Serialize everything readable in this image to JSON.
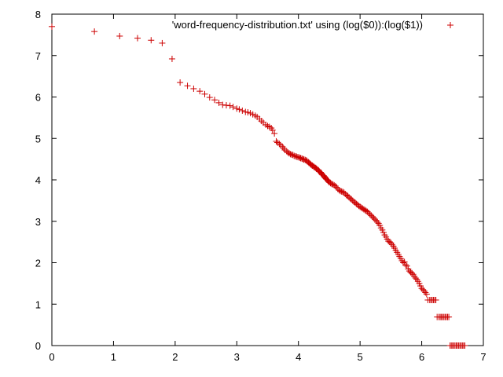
{
  "chart_data": {
    "type": "scatter",
    "title": "",
    "xlabel": "",
    "ylabel": "",
    "xlim": [
      0,
      7
    ],
    "ylim": [
      0,
      8
    ],
    "x_ticks": [
      "0",
      "1",
      "2",
      "3",
      "4",
      "5",
      "6",
      "7"
    ],
    "y_ticks": [
      "0",
      "1",
      "2",
      "3",
      "4",
      "5",
      "6",
      "7",
      "8"
    ],
    "grid": false,
    "legend_position": "top-right",
    "series": [
      {
        "name": "'word-frequency-distribution.txt' using (log($0)):(log($1))",
        "color": "#cc0000",
        "marker": "plus",
        "points": [
          [
            0.0,
            7.7
          ],
          [
            0.69,
            7.58
          ],
          [
            1.1,
            7.47
          ],
          [
            1.39,
            7.42
          ],
          [
            1.61,
            7.37
          ],
          [
            1.79,
            7.3
          ],
          [
            1.95,
            6.92
          ],
          [
            2.08,
            6.35
          ],
          [
            2.2,
            6.27
          ],
          [
            2.3,
            6.2
          ],
          [
            2.4,
            6.14
          ],
          [
            2.48,
            6.07
          ],
          [
            2.56,
            5.99
          ],
          [
            2.64,
            5.93
          ],
          [
            2.71,
            5.86
          ],
          [
            2.77,
            5.81
          ],
          [
            2.83,
            5.8
          ],
          [
            2.89,
            5.79
          ],
          [
            2.94,
            5.76
          ],
          [
            3.0,
            5.72
          ],
          [
            3.04,
            5.7
          ],
          [
            3.09,
            5.67
          ],
          [
            3.14,
            5.64
          ],
          [
            3.18,
            5.63
          ],
          [
            3.22,
            5.61
          ],
          [
            3.26,
            5.58
          ],
          [
            3.3,
            5.55
          ],
          [
            3.33,
            5.52
          ],
          [
            3.37,
            5.47
          ],
          [
            3.4,
            5.42
          ],
          [
            3.43,
            5.38
          ],
          [
            3.47,
            5.33
          ],
          [
            3.5,
            5.3
          ],
          [
            3.53,
            5.28
          ],
          [
            3.56,
            5.25
          ],
          [
            3.58,
            5.2
          ],
          [
            3.61,
            5.12
          ],
          [
            3.64,
            4.93
          ],
          [
            3.66,
            4.9
          ],
          [
            3.69,
            4.87
          ],
          [
            3.71,
            4.84
          ],
          [
            3.74,
            4.8
          ],
          [
            3.76,
            4.76
          ],
          [
            3.78,
            4.72
          ],
          [
            3.81,
            4.69
          ],
          [
            3.83,
            4.66
          ],
          [
            3.85,
            4.64
          ],
          [
            3.87,
            4.62
          ],
          [
            3.89,
            4.61
          ],
          [
            3.91,
            4.6
          ],
          [
            3.93,
            4.58
          ],
          [
            3.95,
            4.57
          ],
          [
            3.97,
            4.56
          ],
          [
            3.99,
            4.55
          ],
          [
            4.01,
            4.54
          ],
          [
            4.03,
            4.53
          ],
          [
            4.04,
            4.52
          ],
          [
            4.06,
            4.51
          ],
          [
            4.08,
            4.5
          ],
          [
            4.09,
            4.49
          ],
          [
            4.11,
            4.48
          ],
          [
            4.13,
            4.47
          ],
          [
            4.14,
            4.45
          ],
          [
            4.16,
            4.43
          ],
          [
            4.17,
            4.41
          ],
          [
            4.19,
            4.39
          ],
          [
            4.2,
            4.37
          ],
          [
            4.22,
            4.35
          ],
          [
            4.23,
            4.34
          ],
          [
            4.25,
            4.32
          ],
          [
            4.26,
            4.3
          ],
          [
            4.28,
            4.29
          ],
          [
            4.29,
            4.27
          ],
          [
            4.3,
            4.26
          ],
          [
            4.32,
            4.24
          ],
          [
            4.33,
            4.22
          ],
          [
            4.34,
            4.2
          ],
          [
            4.36,
            4.18
          ],
          [
            4.37,
            4.16
          ],
          [
            4.38,
            4.14
          ],
          [
            4.39,
            4.12
          ],
          [
            4.41,
            4.1
          ],
          [
            4.42,
            4.08
          ],
          [
            4.43,
            4.06
          ],
          [
            4.44,
            4.04
          ],
          [
            4.45,
            4.02
          ],
          [
            4.47,
            4.0
          ],
          [
            4.48,
            3.98
          ],
          [
            4.49,
            3.96
          ],
          [
            4.5,
            3.94
          ],
          [
            4.52,
            3.92
          ],
          [
            4.54,
            3.9
          ],
          [
            4.56,
            3.89
          ],
          [
            4.58,
            3.87
          ],
          [
            4.6,
            3.85
          ],
          [
            4.62,
            3.82
          ],
          [
            4.64,
            3.78
          ],
          [
            4.66,
            3.75
          ],
          [
            4.68,
            3.73
          ],
          [
            4.7,
            3.72
          ],
          [
            4.72,
            3.71
          ],
          [
            4.74,
            3.69
          ],
          [
            4.76,
            3.66
          ],
          [
            4.78,
            3.63
          ],
          [
            4.8,
            3.61
          ],
          [
            4.82,
            3.58
          ],
          [
            4.84,
            3.55
          ],
          [
            4.86,
            3.53
          ],
          [
            4.88,
            3.5
          ],
          [
            4.9,
            3.47
          ],
          [
            4.92,
            3.45
          ],
          [
            4.94,
            3.42
          ],
          [
            4.96,
            3.4
          ],
          [
            4.98,
            3.37
          ],
          [
            5.0,
            3.35
          ],
          [
            5.02,
            3.33
          ],
          [
            5.04,
            3.31
          ],
          [
            5.06,
            3.29
          ],
          [
            5.08,
            3.27
          ],
          [
            5.1,
            3.25
          ],
          [
            5.12,
            3.23
          ],
          [
            5.14,
            3.2
          ],
          [
            5.16,
            3.17
          ],
          [
            5.18,
            3.14
          ],
          [
            5.2,
            3.11
          ],
          [
            5.22,
            3.08
          ],
          [
            5.24,
            3.05
          ],
          [
            5.26,
            3.02
          ],
          [
            5.28,
            2.98
          ],
          [
            5.3,
            2.95
          ],
          [
            5.32,
            2.9
          ],
          [
            5.34,
            2.84
          ],
          [
            5.36,
            2.79
          ],
          [
            5.38,
            2.73
          ],
          [
            5.4,
            2.67
          ],
          [
            5.42,
            2.62
          ],
          [
            5.44,
            2.57
          ],
          [
            5.46,
            2.52
          ],
          [
            5.48,
            2.5
          ],
          [
            5.5,
            2.48
          ],
          [
            5.52,
            2.44
          ],
          [
            5.54,
            2.4
          ],
          [
            5.56,
            2.35
          ],
          [
            5.58,
            2.3
          ],
          [
            5.6,
            2.25
          ],
          [
            5.62,
            2.2
          ],
          [
            5.64,
            2.15
          ],
          [
            5.66,
            2.1
          ],
          [
            5.68,
            2.05
          ],
          [
            5.7,
            2.0
          ],
          [
            5.72,
            2.02
          ],
          [
            5.74,
            1.95
          ],
          [
            5.76,
            1.92
          ],
          [
            5.78,
            1.85
          ],
          [
            5.8,
            1.8
          ],
          [
            5.82,
            1.77
          ],
          [
            5.84,
            1.75
          ],
          [
            5.86,
            1.72
          ],
          [
            5.88,
            1.67
          ],
          [
            5.9,
            1.63
          ],
          [
            5.92,
            1.6
          ],
          [
            5.94,
            1.55
          ],
          [
            5.96,
            1.5
          ],
          [
            5.98,
            1.44
          ],
          [
            6.0,
            1.38
          ],
          [
            6.02,
            1.35
          ],
          [
            6.04,
            1.32
          ],
          [
            6.06,
            1.28
          ],
          [
            6.08,
            1.24
          ],
          [
            6.1,
            1.1
          ],
          [
            6.13,
            1.1
          ],
          [
            6.15,
            1.1
          ],
          [
            6.17,
            1.1
          ],
          [
            6.19,
            1.1
          ],
          [
            6.21,
            1.1
          ],
          [
            6.23,
            1.1
          ],
          [
            6.25,
            0.69
          ],
          [
            6.28,
            0.69
          ],
          [
            6.3,
            0.69
          ],
          [
            6.32,
            0.69
          ],
          [
            6.34,
            0.69
          ],
          [
            6.36,
            0.69
          ],
          [
            6.38,
            0.69
          ],
          [
            6.4,
            0.69
          ],
          [
            6.42,
            0.69
          ],
          [
            6.44,
            0.69
          ],
          [
            6.46,
            0.0
          ],
          [
            6.48,
            0.0
          ],
          [
            6.5,
            0.0
          ],
          [
            6.52,
            0.0
          ],
          [
            6.54,
            0.0
          ],
          [
            6.56,
            0.0
          ],
          [
            6.58,
            0.0
          ],
          [
            6.6,
            0.0
          ],
          [
            6.62,
            0.0
          ],
          [
            6.64,
            0.0
          ],
          [
            6.66,
            0.0
          ],
          [
            6.68,
            0.0
          ],
          [
            6.7,
            0.0
          ]
        ]
      }
    ]
  }
}
